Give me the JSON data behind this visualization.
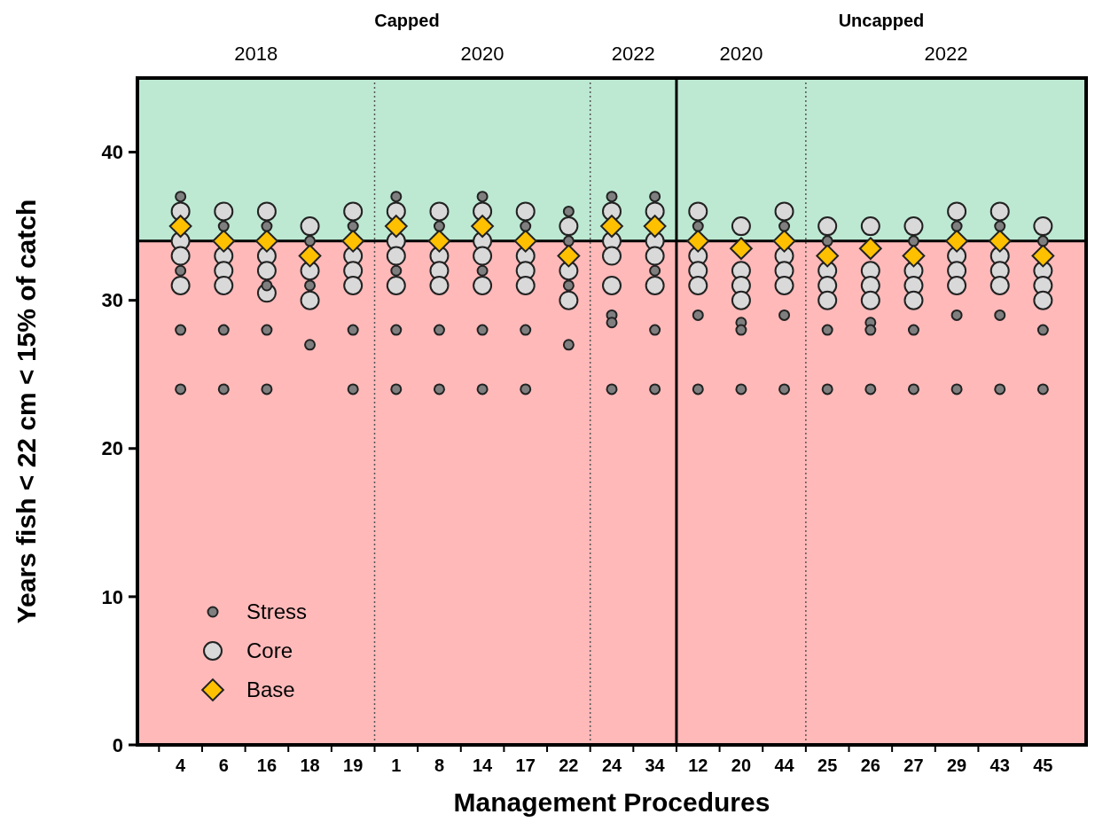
{
  "chart_data": {
    "type": "scatter",
    "xlabel": "Management Procedures",
    "ylabel": "Years fish < 22 cm < 15% of catch",
    "annotations": [
      "Capped",
      "Uncapped",
      "2018",
      "2020",
      "2022",
      "2020",
      "2022"
    ],
    "categories": [
      "4",
      "6",
      "16",
      "18",
      "19",
      "1",
      "8",
      "14",
      "17",
      "22",
      "24",
      "34",
      "12",
      "20",
      "44",
      "25",
      "26",
      "27",
      "29",
      "43",
      "45"
    ],
    "ylim": [
      0,
      45
    ],
    "yticks": [
      0,
      10,
      20,
      30,
      40
    ],
    "legend": "bottom left",
    "bands": [
      {
        "axis": "y",
        "from": 34,
        "to": 45,
        "color": "#bde9d3"
      },
      {
        "axis": "y",
        "from": 0,
        "to": 34,
        "color": "#ffb9b9"
      }
    ],
    "ref_lines": [
      {
        "axis": "y",
        "value": 34,
        "color": "#000000",
        "line_style": "solid"
      }
    ],
    "series": [
      {
        "name": "Stress",
        "color": "#7f7f7f",
        "marker": "circle",
        "x": [
          "4",
          "4",
          "4",
          "4",
          "6",
          "6",
          "6",
          "16",
          "16",
          "16",
          "16",
          "18",
          "18",
          "18",
          "19",
          "19",
          "19",
          "1",
          "1",
          "1",
          "1",
          "8",
          "8",
          "8",
          "14",
          "14",
          "14",
          "14",
          "17",
          "17",
          "17",
          "22",
          "22",
          "22",
          "22",
          "24",
          "24",
          "24",
          "24",
          "34",
          "34",
          "34",
          "34",
          "12",
          "12",
          "12",
          "20",
          "20",
          "20",
          "44",
          "44",
          "44",
          "25",
          "25",
          "25",
          "26",
          "26",
          "26",
          "27",
          "27",
          "27",
          "29",
          "29",
          "29",
          "43",
          "43",
          "43",
          "45",
          "45",
          "45"
        ],
        "values": [
          37,
          32,
          28,
          24,
          35,
          28,
          24,
          35,
          31,
          28,
          24,
          34,
          31,
          27,
          35,
          28,
          24,
          37,
          32,
          28,
          24,
          35,
          28,
          24,
          37,
          32,
          28,
          24,
          35,
          28,
          24,
          36,
          34,
          31,
          27,
          37,
          29,
          28.5,
          24,
          37,
          32,
          28,
          24,
          35,
          29,
          24,
          28.5,
          28,
          24,
          35,
          29,
          24,
          34,
          28,
          24,
          28.5,
          28,
          24,
          34,
          28,
          24,
          35,
          29,
          24,
          35,
          29,
          24,
          34,
          28,
          24
        ]
      },
      {
        "name": "Core",
        "color": "#d9d9d9",
        "marker": "circle",
        "x": [
          "4",
          "4",
          "4",
          "4",
          "6",
          "6",
          "6",
          "6",
          "16",
          "16",
          "16",
          "16",
          "18",
          "18",
          "18",
          "19",
          "19",
          "19",
          "19",
          "1",
          "1",
          "1",
          "1",
          "8",
          "8",
          "8",
          "8",
          "14",
          "14",
          "14",
          "14",
          "17",
          "17",
          "17",
          "17",
          "22",
          "22",
          "22",
          "24",
          "24",
          "24",
          "24",
          "34",
          "34",
          "34",
          "34",
          "12",
          "12",
          "12",
          "12",
          "20",
          "20",
          "20",
          "20",
          "44",
          "44",
          "44",
          "44",
          "25",
          "25",
          "25",
          "25",
          "26",
          "26",
          "26",
          "26",
          "27",
          "27",
          "27",
          "27",
          "29",
          "29",
          "29",
          "29",
          "43",
          "43",
          "43",
          "43",
          "45",
          "45",
          "45",
          "45"
        ],
        "values": [
          36,
          34,
          33,
          31,
          36,
          33,
          32,
          31,
          36,
          33,
          32,
          30.5,
          35,
          32,
          30,
          36,
          33,
          32,
          31,
          36,
          34,
          33,
          31,
          36,
          33,
          32,
          31,
          36,
          34,
          33,
          31,
          36,
          33,
          32,
          31,
          35,
          32,
          30,
          36,
          34,
          33,
          31,
          36,
          34,
          33,
          31,
          36,
          33,
          32,
          31,
          35,
          32,
          31,
          30,
          36,
          33,
          32,
          31,
          35,
          32,
          31,
          30,
          35,
          32,
          31,
          30,
          35,
          32,
          31,
          30,
          36,
          33,
          32,
          31,
          36,
          33,
          32,
          31,
          35,
          32,
          31,
          30
        ]
      },
      {
        "name": "Base",
        "color": "#ffc000",
        "marker": "diamond",
        "x": [
          "4",
          "6",
          "16",
          "18",
          "19",
          "1",
          "8",
          "14",
          "17",
          "22",
          "24",
          "34",
          "12",
          "20",
          "44",
          "25",
          "26",
          "27",
          "29",
          "43",
          "45"
        ],
        "values": [
          35,
          34,
          34,
          33,
          34,
          35,
          34,
          35,
          34,
          33,
          35,
          35,
          34,
          33.5,
          34,
          33,
          33.5,
          33,
          34,
          34,
          33
        ]
      }
    ]
  }
}
